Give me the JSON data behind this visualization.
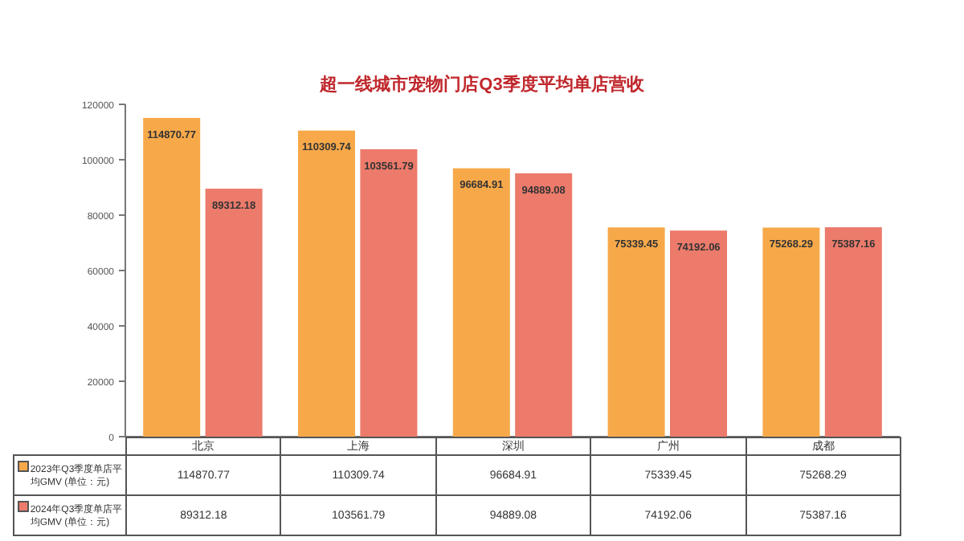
{
  "chart_data": {
    "type": "bar",
    "title": "超一线城市宠物门店Q3季度平均单店营收",
    "categories": [
      "北京",
      "上海",
      "深圳",
      "广州",
      "成都"
    ],
    "series": [
      {
        "name": "2023年Q3季度单店平均GMV (单位：元)",
        "color": "#f7a94a",
        "values": [
          114870.77,
          110309.74,
          96684.91,
          75339.45,
          75268.29
        ]
      },
      {
        "name": "2024年Q3季度单店平均GMV (单位：元)",
        "color": "#ec7b6b",
        "values": [
          89312.18,
          103561.79,
          94889.08,
          74192.06,
          75387.16
        ]
      }
    ],
    "ylim": [
      0,
      120000
    ],
    "yticks": [
      0,
      20000,
      40000,
      60000,
      80000,
      100000,
      120000
    ],
    "annotations": [
      "114870.77",
      "110309.74",
      "96684.91",
      "75339.45",
      "75268.29",
      "89312.18",
      "103561.79",
      "94889.08",
      "74192.06",
      "75387.16"
    ],
    "data_labels": true,
    "legend": "bottom",
    "grid": false
  }
}
